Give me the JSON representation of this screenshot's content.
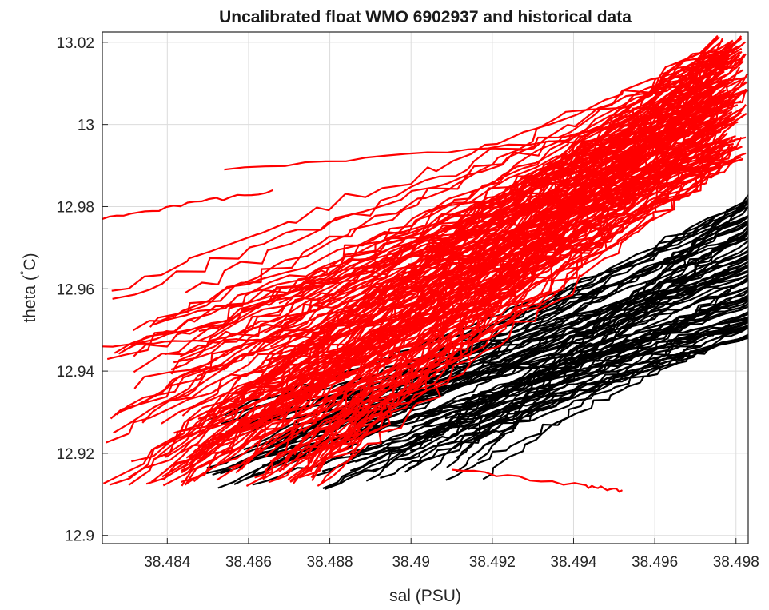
{
  "chart_data": {
    "type": "line",
    "title": "Uncalibrated float WMO 6902937 and historical data",
    "xlabel": "sal (PSU)",
    "ylabel": "theta (",
    "ylabel_unit": "C)",
    "ylabel_superscript": "°",
    "xlim": [
      38.4824,
      38.4983
    ],
    "ylim": [
      12.898,
      13.0225
    ],
    "xticks": [
      38.484,
      38.486,
      38.488,
      38.49,
      38.492,
      38.494,
      38.496,
      38.498
    ],
    "xtick_labels": [
      "38.484",
      "38.486",
      "38.488",
      "38.49",
      "38.492",
      "38.494",
      "38.496",
      "38.498"
    ],
    "yticks": [
      12.9,
      12.92,
      12.94,
      12.96,
      12.98,
      13.0,
      13.02
    ],
    "ytick_labels": [
      "12.9",
      "12.92",
      "12.94",
      "12.96",
      "12.98",
      "13",
      "13.02"
    ],
    "grid": true,
    "series": [
      {
        "color": "#ff0000",
        "count": 150,
        "start": {
          "x": [
            38.4824,
            38.488
          ],
          "y": [
            12.912,
            12.96
          ]
        },
        "end": {
          "x": [
            38.4975,
            38.4983
          ],
          "y": [
            12.99,
            13.022
          ]
        },
        "outliers": [
          {
            "x": [
              38.4824,
              38.4866
            ],
            "y": [
              12.977,
              12.984
            ]
          },
          {
            "x": [
              38.4854,
              38.4974
            ],
            "y": [
              12.989,
              12.999
            ]
          },
          {
            "x": [
              38.4824,
              38.4885
            ],
            "y": [
              12.946,
              12.949
            ]
          },
          {
            "x": [
              38.491,
              38.4943,
              38.4952
            ],
            "y": [
              12.916,
              12.912,
              12.911
            ]
          }
        ]
      },
      {
        "color": "#000000",
        "count": 80,
        "start": {
          "x": [
            38.4848,
            38.492
          ],
          "y": [
            12.911,
            12.93
          ]
        },
        "end": {
          "x": [
            38.4983,
            38.4983
          ],
          "y": [
            12.948,
            12.983
          ]
        }
      }
    ]
  }
}
